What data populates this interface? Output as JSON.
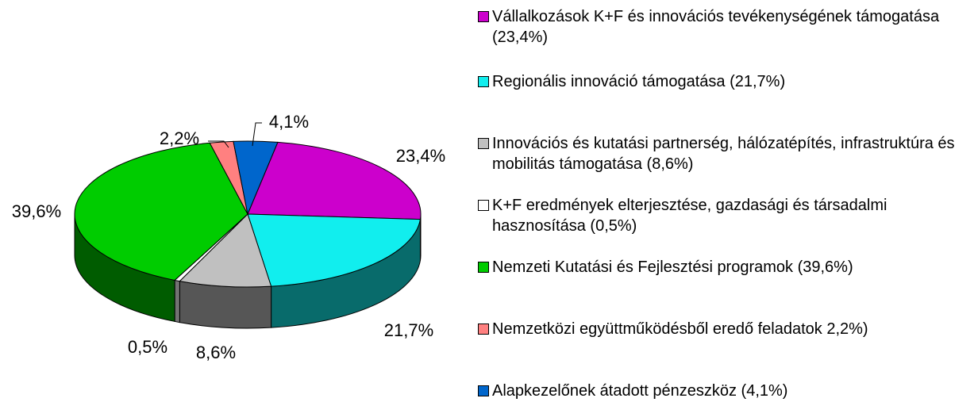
{
  "chart_data": {
    "type": "pie",
    "categories": [
      "Vállalkozások K+F és innovációs tevékenységének támogatása (23,4%)",
      "Regionális innováció támogatása (21,7%)",
      "Innovációs és kutatási partnerség, hálózatépítés, infrastruktúra és mobilitás támogatása (8,6%)",
      "K+F eredmények elterjesztése, gazdasági és társadalmi hasznosítása (0,5%)",
      "Nemzeti Kutatási és Fejlesztési programok (39,6%)",
      "Nemzetközi együttműködésből eredő feladatok 2,2%)",
      "Alapkezelőnek átadott pénzeszköz (4,1%)"
    ],
    "values": [
      23.4,
      21.7,
      8.6,
      0.5,
      39.6,
      2.2,
      4.1
    ],
    "value_labels": [
      "23,4%",
      "21,7%",
      "8,6%",
      "0,5%",
      "39,6%",
      "2,2%",
      "4,1%"
    ],
    "colors": [
      "#cc00cc",
      "#11eeee",
      "#c0c0c0",
      "#ffffff",
      "#00cc00",
      "#ff8080",
      "#0066cc"
    ],
    "legend": "right"
  }
}
